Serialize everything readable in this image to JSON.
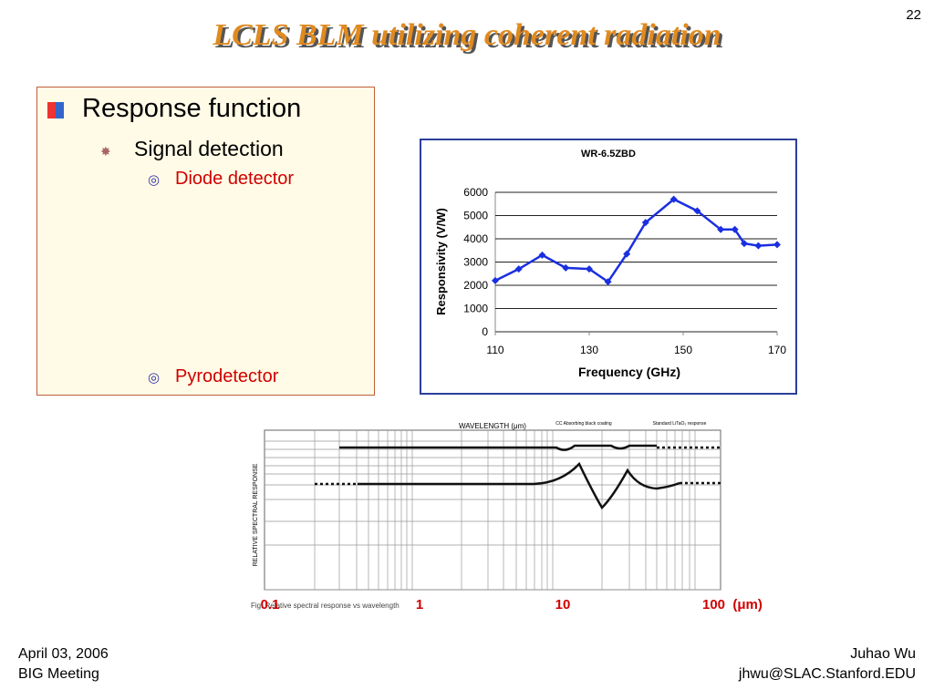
{
  "slide_number": "22",
  "title": "LCLS BLM utilizing coherent radiation",
  "bullets": {
    "level1": "Response function",
    "level2": "Signal detection",
    "item1": "Diode detector",
    "item2": "Pyrodetector"
  },
  "chart": {
    "type": "line",
    "title": "WR-6.5ZBD",
    "x_label": "Frequency (GHz)",
    "y_label": "Responsivity (V/W)",
    "x": [
      110,
      115,
      120,
      125,
      130,
      134,
      138,
      142,
      148,
      153,
      158,
      161,
      163,
      166,
      170
    ],
    "values": [
      2200,
      2700,
      3300,
      2750,
      2700,
      2150,
      3350,
      4700,
      5700,
      5200,
      4400,
      4400,
      3800,
      3700,
      3750
    ],
    "color": "#1a2fe0",
    "xlim": [
      110,
      170
    ],
    "xticks": [
      110,
      130,
      150,
      170
    ],
    "ylim": [
      0,
      6000
    ],
    "yticks": [
      0,
      1000,
      2000,
      3000,
      4000,
      5000,
      6000
    ],
    "grid": true
  },
  "spectrum": {
    "axis_title": "WAVELENGTH (μm)",
    "y_label": "RELATIVE SPECTRAL RESPONSE",
    "note1": "CC Absorbing black coating",
    "note2": "Standard LiTaO₃ response",
    "caption": "Fig. Relative spectral response vs wavelength",
    "overlay_labels": [
      "0.1",
      "1",
      "10",
      "100  (μm)"
    ]
  },
  "footer": {
    "date": "April 03, 2006",
    "meeting": "BIG Meeting",
    "author": "Juhao Wu",
    "email": "jhwu@SLAC.Stanford.EDU"
  }
}
